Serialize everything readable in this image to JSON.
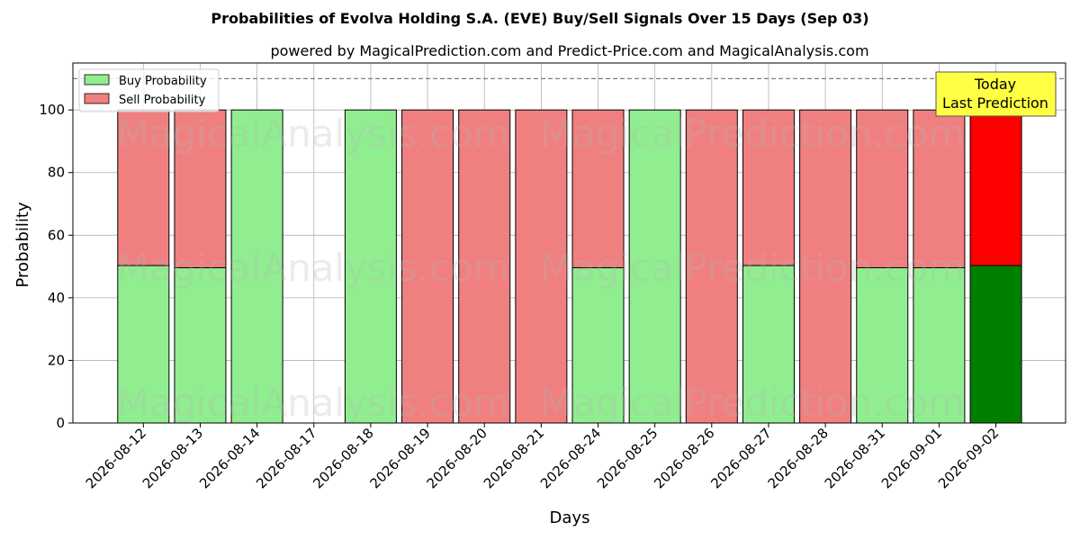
{
  "chart_data": {
    "type": "bar",
    "stacked": true,
    "title": "Probabilities of Evolva Holding S.A. (EVE) Buy/Sell Signals Over 15 Days (Sep 03)",
    "subtitle": "powered by MagicalPrediction.com and Predict-Price.com and MagicalAnalysis.com",
    "xlabel": "Days",
    "ylabel": "Probability",
    "ylim": [
      0,
      115
    ],
    "yticks": [
      0,
      20,
      40,
      60,
      80,
      100
    ],
    "reference_line": 110,
    "grid": true,
    "legend_position": "top-left",
    "categories": [
      "2026-08-12",
      "2026-08-13",
      "2026-08-14",
      "2026-08-17",
      "2026-08-18",
      "2026-08-19",
      "2026-08-20",
      "2026-08-21",
      "2026-08-24",
      "2026-08-25",
      "2026-08-26",
      "2026-08-27",
      "2026-08-28",
      "2026-08-31",
      "2026-09-01",
      "2026-09-02"
    ],
    "series": [
      {
        "name": "Buy Probability",
        "color": "#90ee90",
        "highlight_color": "#008000",
        "values": [
          50.3,
          49.6,
          100,
          0,
          100,
          0,
          0,
          0,
          49.6,
          100,
          0,
          50.3,
          0,
          49.6,
          49.6,
          50.3
        ]
      },
      {
        "name": "Sell Probability",
        "color": "#f08080",
        "highlight_color": "#ff0000",
        "values": [
          49.7,
          50.4,
          0,
          0,
          0,
          100,
          100,
          100,
          50.4,
          0,
          100,
          49.7,
          100,
          50.4,
          50.4,
          49.7
        ]
      }
    ],
    "highlight_index": 15,
    "annotation": {
      "line1": "Today",
      "line2": "Last Prediction"
    },
    "watermarks": [
      "MagicalAnalysis.com",
      "MagicalPrediction.com"
    ]
  }
}
